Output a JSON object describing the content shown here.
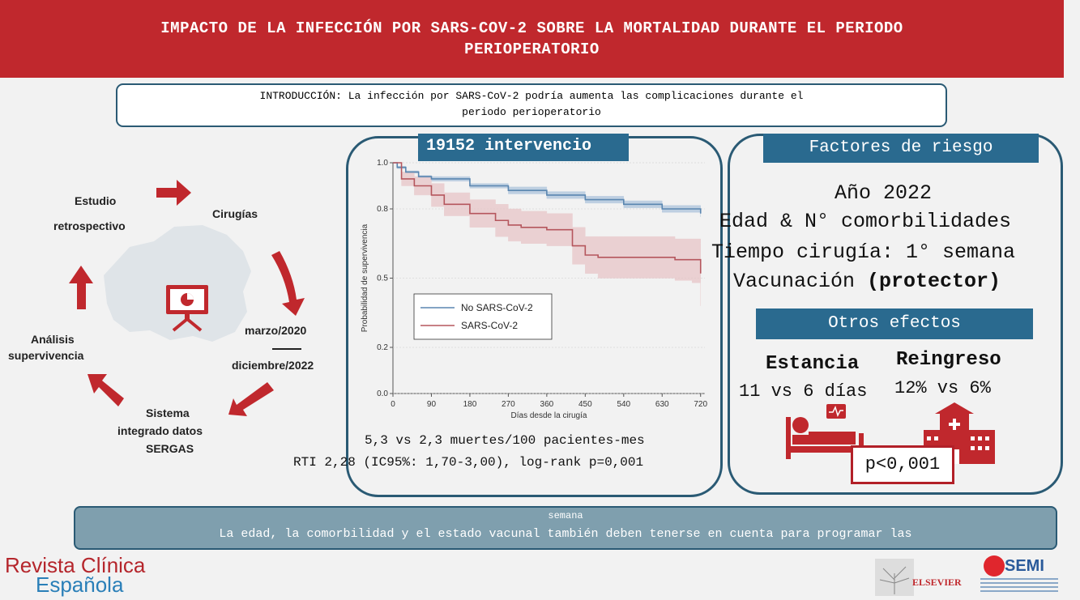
{
  "header": {
    "title_line1": "IMPACTO DE LA INFECCIÓN POR SARS-COV-2 SOBRE LA MORTALIDAD DURANTE EL PERIODO",
    "title_line2": "PERIOPERATORIO"
  },
  "intro": {
    "line1": "INTRODUCCIÓN: La infección por SARS-CoV-2 podría aumenta las complicaciones durante el",
    "line2": "periodo perioperatorio"
  },
  "cycle": {
    "estudio": "Estudio",
    "retrospectivo": "retrospectivo",
    "cirugias": "Cirugías",
    "marzo": "marzo/2020",
    "diciembre": "diciembre/2022",
    "sistema1": "Sistema",
    "sistema2": "integrado datos",
    "sistema3": "SERGAS",
    "analisis1": "Análisis",
    "analisis2": "supervivencia",
    "arrow_color": "#c0282d",
    "map_color": "#dfe4e8"
  },
  "middle": {
    "title": "19152 intervencio",
    "stat1": "5,3 vs 2,3 muertes/100 pacientes-mes",
    "stat2": "RTI 2,28 (IC95%: 1,70-3,00), log-rank p=0,001"
  },
  "chart_data": {
    "type": "line",
    "xlabel": "Días desde la cirugía",
    "ylabel": "Probabilidad de supervivencia",
    "xlim": [
      0,
      730
    ],
    "ylim": [
      0.0,
      1.0
    ],
    "xticks": [
      0,
      90,
      180,
      270,
      360,
      450,
      540,
      630,
      720
    ],
    "yticks": [
      0.0,
      0.2,
      0.5,
      0.8,
      1.0
    ],
    "ytick_labels": [
      "0.0",
      "0.2",
      "0.5",
      "0.8",
      "1.0"
    ],
    "legend_position": "bottom-left",
    "series": [
      {
        "name": "No SARS-CoV-2",
        "color": "#5a86b0",
        "band_color": "#a9c1da",
        "x": [
          0,
          10,
          30,
          60,
          90,
          180,
          270,
          360,
          450,
          540,
          630,
          720
        ],
        "y": [
          1.0,
          0.98,
          0.96,
          0.94,
          0.93,
          0.9,
          0.88,
          0.86,
          0.84,
          0.82,
          0.8,
          0.78
        ],
        "lower": [
          1.0,
          0.975,
          0.955,
          0.935,
          0.92,
          0.89,
          0.865,
          0.845,
          0.825,
          0.805,
          0.785,
          0.765
        ],
        "upper": [
          1.0,
          0.985,
          0.965,
          0.945,
          0.94,
          0.91,
          0.895,
          0.875,
          0.855,
          0.835,
          0.815,
          0.795
        ]
      },
      {
        "name": "SARS-CoV-2",
        "color": "#b5565d",
        "band_color": "#e7c3c5",
        "x": [
          0,
          20,
          50,
          90,
          120,
          180,
          240,
          270,
          300,
          360,
          420,
          450,
          480,
          540,
          600,
          660,
          700,
          720
        ],
        "y": [
          1.0,
          0.93,
          0.9,
          0.86,
          0.82,
          0.78,
          0.75,
          0.73,
          0.72,
          0.71,
          0.64,
          0.6,
          0.59,
          0.59,
          0.59,
          0.58,
          0.58,
          0.52
        ],
        "lower": [
          1.0,
          0.9,
          0.86,
          0.81,
          0.77,
          0.72,
          0.68,
          0.66,
          0.65,
          0.64,
          0.56,
          0.52,
          0.5,
          0.5,
          0.5,
          0.49,
          0.48,
          0.38
        ],
        "upper": [
          1.0,
          0.96,
          0.94,
          0.91,
          0.87,
          0.84,
          0.82,
          0.8,
          0.79,
          0.78,
          0.72,
          0.68,
          0.68,
          0.68,
          0.68,
          0.67,
          0.67,
          0.65
        ]
      }
    ]
  },
  "right": {
    "factors_title": "Factores de riesgo",
    "year": "Año 2022",
    "factor1": "Edad & N° comorbilidades",
    "factor2": "Tiempo cirugía: 1° semana",
    "factor3_a": "Vacunación ",
    "factor3_b": "(protector)",
    "other_title": "Otros efectos",
    "estancia": "Estancia",
    "reingreso": "Reingreso",
    "estancia_val": "11 vs 6 días",
    "reingreso_val": "12% vs 6%",
    "pvalue": "p<0,001",
    "icon_color": "#c0282d"
  },
  "conclusion": {
    "line1": "semana",
    "line2": "La edad, la comorbilidad y el estado vacunal también deben tenerse en cuenta para programar las"
  },
  "footer": {
    "journal1": "Revista Clínica",
    "journal2": "Española",
    "elsevier": "ELSEVIER",
    "semi": "SEMI"
  }
}
